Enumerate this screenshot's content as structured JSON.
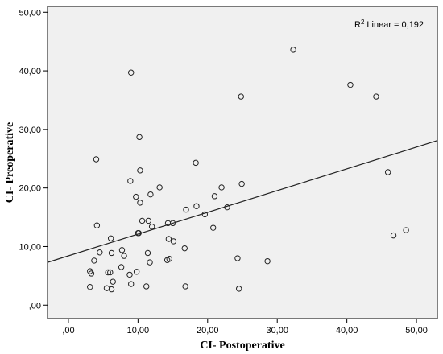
{
  "chart_data": {
    "type": "scatter",
    "xlabel": "CI- Postoperative",
    "ylabel": "CI- Preoperative",
    "xlim": [
      -3,
      53
    ],
    "ylim": [
      -2.3,
      51
    ],
    "x_ticks": [
      0,
      10,
      20,
      30,
      40,
      50
    ],
    "x_tick_labels": [
      ",00",
      "10,00",
      "20,00",
      "30,00",
      "40,00",
      "50,00"
    ],
    "y_ticks": [
      0,
      10,
      20,
      30,
      40,
      50
    ],
    "y_tick_labels": [
      ",00",
      "10,00",
      "20,00",
      "30,00",
      "40,00",
      "50,00"
    ],
    "grid": false,
    "plot_background": "#f0f0f0",
    "marker_color": "#222222",
    "annotation": {
      "text": "Linear = 0,192",
      "prefix": "R",
      "superscript": "2"
    },
    "fit_line": {
      "x": [
        -3,
        53
      ],
      "y": [
        7.3,
        28.1
      ]
    },
    "points": [
      [
        3.1,
        3.1
      ],
      [
        3.1,
        5.8
      ],
      [
        3.3,
        5.4
      ],
      [
        3.7,
        7.6
      ],
      [
        4.0,
        24.9
      ],
      [
        4.1,
        13.6
      ],
      [
        4.5,
        9.0
      ],
      [
        5.5,
        2.9
      ],
      [
        5.7,
        5.6
      ],
      [
        6.0,
        5.6
      ],
      [
        6.1,
        11.4
      ],
      [
        6.2,
        2.7
      ],
      [
        6.2,
        8.9
      ],
      [
        6.4,
        4.0
      ],
      [
        7.6,
        6.5
      ],
      [
        7.7,
        9.4
      ],
      [
        8.0,
        8.4
      ],
      [
        8.8,
        5.2
      ],
      [
        8.9,
        21.2
      ],
      [
        9.0,
        3.6
      ],
      [
        9.0,
        39.7
      ],
      [
        9.7,
        18.5
      ],
      [
        9.8,
        5.7
      ],
      [
        10.0,
        12.3
      ],
      [
        10.1,
        12.3
      ],
      [
        10.2,
        28.7
      ],
      [
        10.3,
        23.0
      ],
      [
        10.3,
        17.5
      ],
      [
        10.6,
        14.4
      ],
      [
        11.2,
        3.2
      ],
      [
        11.4,
        8.9
      ],
      [
        11.5,
        14.4
      ],
      [
        11.7,
        7.3
      ],
      [
        11.8,
        18.9
      ],
      [
        12.0,
        13.4
      ],
      [
        13.1,
        20.1
      ],
      [
        14.2,
        7.7
      ],
      [
        14.3,
        14.0
      ],
      [
        14.4,
        11.3
      ],
      [
        14.5,
        7.9
      ],
      [
        15.0,
        14.0
      ],
      [
        15.1,
        10.9
      ],
      [
        16.7,
        9.7
      ],
      [
        16.8,
        3.2
      ],
      [
        16.9,
        16.3
      ],
      [
        18.3,
        24.3
      ],
      [
        18.4,
        16.9
      ],
      [
        19.6,
        15.5
      ],
      [
        20.8,
        13.2
      ],
      [
        21.0,
        18.6
      ],
      [
        22.0,
        20.1
      ],
      [
        22.8,
        16.7
      ],
      [
        24.3,
        8.0
      ],
      [
        24.5,
        2.8
      ],
      [
        24.8,
        35.6
      ],
      [
        24.9,
        20.7
      ],
      [
        28.6,
        7.5
      ],
      [
        32.3,
        43.6
      ],
      [
        40.5,
        37.6
      ],
      [
        44.2,
        35.6
      ],
      [
        45.9,
        22.7
      ],
      [
        46.7,
        11.9
      ],
      [
        48.5,
        12.8
      ]
    ]
  }
}
